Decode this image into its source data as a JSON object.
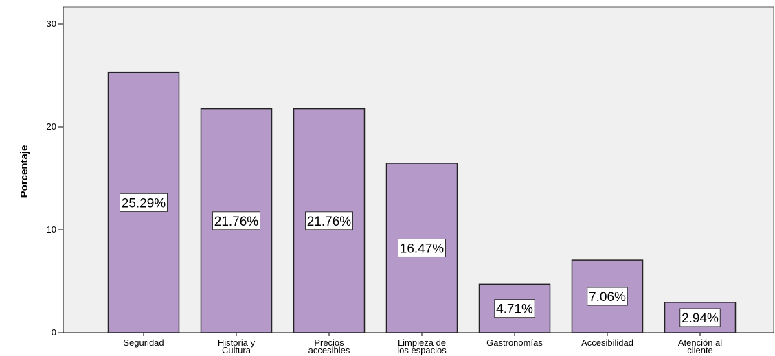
{
  "chart_data": {
    "type": "bar",
    "categories": [
      [
        "Seguridad"
      ],
      [
        "Historia y",
        "Cultura"
      ],
      [
        "Precios",
        "accesibles"
      ],
      [
        "Limpieza de",
        "los espacios"
      ],
      [
        "Gastronomías"
      ],
      [
        "Accesibilidad"
      ],
      [
        "Atención al",
        "cliente"
      ]
    ],
    "values": [
      25.29,
      21.76,
      21.76,
      16.47,
      4.71,
      7.06,
      2.94
    ],
    "data_labels": [
      "25.29%",
      "21.76%",
      "21.76%",
      "16.47%",
      "4.71%",
      "7.06%",
      "2.94%"
    ],
    "ylabel": "Porcentaje",
    "xlabel": "",
    "ylim": [
      0,
      30
    ],
    "yticks": [
      "0",
      "10",
      "20",
      "30"
    ],
    "grid": false,
    "colors": {
      "bar_fill": "#b59ac9",
      "bar_stroke": "#222222",
      "plot_bg": "#f0f0f0",
      "axis": "#000000"
    }
  }
}
